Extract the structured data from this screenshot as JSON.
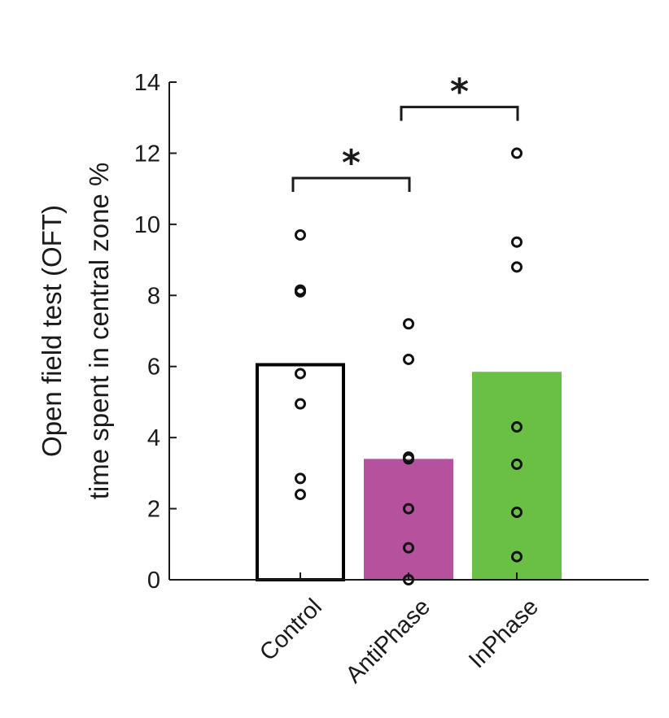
{
  "chart_data": {
    "type": "bar",
    "title": "",
    "xlabel": "",
    "ylabel_lines": [
      "Open field test (OFT)",
      "time spent in central zone %"
    ],
    "ylim": [
      0,
      14
    ],
    "yticks": [
      0,
      2,
      4,
      6,
      8,
      10,
      12,
      14
    ],
    "categories": [
      "Control",
      "AntiPhase",
      "InPhase"
    ],
    "values": [
      6.05,
      3.4,
      5.85
    ],
    "bar_styles": [
      {
        "fill": "#ffffff",
        "stroke": "#000000"
      },
      {
        "fill": "#b5519d",
        "stroke": "none"
      },
      {
        "fill": "#6abf45",
        "stroke": "none"
      }
    ],
    "points": [
      [
        9.7,
        8.15,
        8.1,
        5.8,
        4.95,
        2.85,
        2.4
      ],
      [
        7.2,
        6.2,
        3.45,
        3.4,
        2.0,
        0.9,
        0.0
      ],
      [
        12.0,
        9.5,
        8.8,
        4.3,
        3.25,
        1.9,
        0.65
      ]
    ],
    "significance": [
      {
        "from": 0,
        "to": 1,
        "y": 11.3,
        "label": "*"
      },
      {
        "from": 1,
        "to": 2,
        "y": 13.3,
        "label": "*"
      }
    ]
  }
}
